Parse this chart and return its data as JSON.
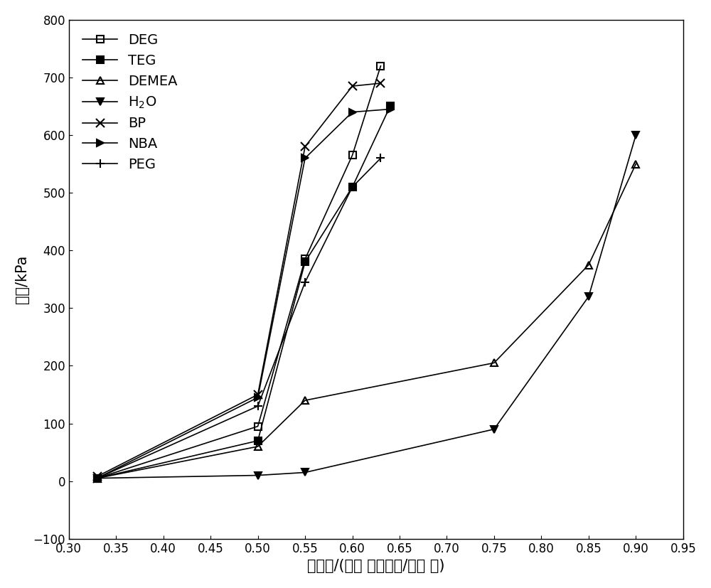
{
  "title": "",
  "xlabel": "吸收量/(摩尔 二氧化碳/摩尔 胺)",
  "ylabel": "压力/kPa",
  "xlim": [
    0.3,
    0.95
  ],
  "ylim": [
    -100,
    800
  ],
  "xticks": [
    0.3,
    0.35,
    0.4,
    0.45,
    0.5,
    0.55,
    0.6,
    0.65,
    0.7,
    0.75,
    0.8,
    0.85,
    0.9,
    0.95
  ],
  "yticks": [
    -100,
    0,
    100,
    200,
    300,
    400,
    500,
    600,
    700,
    800
  ],
  "series": [
    {
      "label": "DEG",
      "x": [
        0.33,
        0.5,
        0.55,
        0.6,
        0.63
      ],
      "y": [
        5,
        95,
        385,
        565,
        720
      ],
      "marker": "s",
      "fillstyle": "none",
      "color": "black",
      "linewidth": 1.2,
      "markersize": 7
    },
    {
      "label": "TEG",
      "x": [
        0.33,
        0.5,
        0.55,
        0.6,
        0.64
      ],
      "y": [
        5,
        70,
        380,
        510,
        650
      ],
      "marker": "s",
      "fillstyle": "full",
      "color": "black",
      "linewidth": 1.2,
      "markersize": 7
    },
    {
      "label": "DEMEA",
      "x": [
        0.33,
        0.5,
        0.55,
        0.75,
        0.85,
        0.9
      ],
      "y": [
        5,
        60,
        140,
        205,
        375,
        550
      ],
      "marker": "^",
      "fillstyle": "none",
      "color": "black",
      "linewidth": 1.2,
      "markersize": 7
    },
    {
      "label": "H$_2$O",
      "x": [
        0.33,
        0.5,
        0.55,
        0.75,
        0.85,
        0.9
      ],
      "y": [
        5,
        10,
        15,
        90,
        320,
        600
      ],
      "marker": "v",
      "fillstyle": "full",
      "color": "black",
      "linewidth": 1.2,
      "markersize": 7
    },
    {
      "label": "BP",
      "x": [
        0.33,
        0.5,
        0.55,
        0.6,
        0.63
      ],
      "y": [
        8,
        150,
        580,
        685,
        690
      ],
      "marker": "x",
      "fillstyle": "full",
      "color": "black",
      "linewidth": 1.2,
      "markersize": 8
    },
    {
      "label": "NBA",
      "x": [
        0.33,
        0.5,
        0.55,
        0.6,
        0.64
      ],
      "y": [
        5,
        145,
        560,
        640,
        645
      ],
      "marker": ">",
      "fillstyle": "full",
      "color": "black",
      "linewidth": 1.2,
      "markersize": 7
    },
    {
      "label": "PEG",
      "x": [
        0.33,
        0.5,
        0.55,
        0.6,
        0.63
      ],
      "y": [
        5,
        130,
        345,
        510,
        560
      ],
      "marker": "+",
      "fillstyle": "none",
      "color": "black",
      "linewidth": 1.2,
      "markersize": 9
    }
  ],
  "background_color": "white",
  "legend_fontsize": 14,
  "axis_label_fontsize": 15,
  "tick_fontsize": 12
}
